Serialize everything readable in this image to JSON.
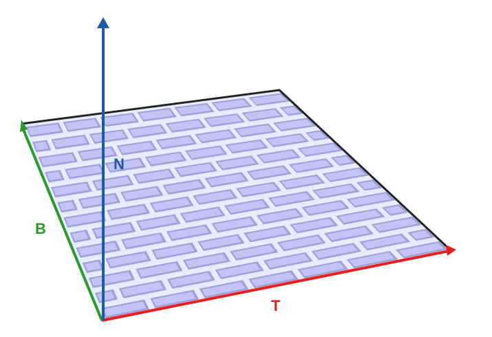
{
  "diagram": {
    "labels": {
      "normal": "N",
      "bitangent": "B",
      "tangent": "T"
    },
    "colors": {
      "normal": "#1f5aa6",
      "bitangent": "#2a9a2a",
      "tangent": "#e61e1e",
      "plane_fill": "#c3c4f6",
      "plane_edge": "#222222",
      "mortar": "#e8ecff",
      "brick_shadow": "#9ea0d6"
    }
  }
}
